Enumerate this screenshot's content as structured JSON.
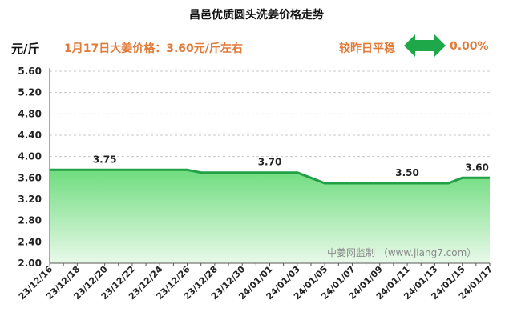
{
  "header": {
    "title": "昌邑优质圆头洗姜价格走势",
    "unit": "元/斤",
    "headline": "1月17日大姜价格：3.60元/斤左右",
    "change_label": "较昨日平稳",
    "change_value": "0.00%",
    "change_icon": "double-arrow-icon",
    "accent_color": "#e07b39",
    "icon_color": "#1fa84a"
  },
  "watermark": "中姜网监制 （www.jiang7.com）",
  "chart_data": {
    "type": "area",
    "x": [
      "23/12/16",
      "23/12/17",
      "23/12/18",
      "23/12/19",
      "23/12/20",
      "23/12/21",
      "23/12/22",
      "23/12/23",
      "23/12/24",
      "23/12/25",
      "23/12/26",
      "23/12/27",
      "23/12/28",
      "23/12/29",
      "23/12/30",
      "23/12/31",
      "24/01/01",
      "24/01/02",
      "24/01/03",
      "24/01/04",
      "24/01/05",
      "24/01/06",
      "24/01/07",
      "24/01/08",
      "24/01/09",
      "24/01/10",
      "24/01/11",
      "24/01/12",
      "24/01/13",
      "24/01/14",
      "24/01/15",
      "24/01/16",
      "24/01/17"
    ],
    "values": [
      3.75,
      3.75,
      3.75,
      3.75,
      3.75,
      3.75,
      3.75,
      3.75,
      3.75,
      3.75,
      3.75,
      3.7,
      3.7,
      3.7,
      3.7,
      3.7,
      3.7,
      3.7,
      3.7,
      3.6,
      3.5,
      3.5,
      3.5,
      3.5,
      3.5,
      3.5,
      3.5,
      3.5,
      3.5,
      3.5,
      3.6,
      3.6,
      3.6
    ],
    "tick_labels": [
      "23/12/16",
      "23/12/18",
      "23/12/20",
      "23/12/22",
      "23/12/24",
      "23/12/26",
      "23/12/28",
      "23/12/30",
      "24/01/01",
      "24/01/03",
      "24/01/05",
      "24/01/07",
      "24/01/09",
      "24/01/11",
      "24/01/13",
      "24/01/15",
      "24/01/17"
    ],
    "y_ticks": [
      "2.00",
      "2.40",
      "2.80",
      "3.20",
      "3.60",
      "4.00",
      "4.40",
      "4.80",
      "5.20",
      "5.60"
    ],
    "ylim": [
      2.0,
      5.6
    ],
    "data_labels": [
      {
        "x": "23/12/20",
        "text": "3.75"
      },
      {
        "x": "24/01/01",
        "text": "3.70"
      },
      {
        "x": "24/01/11",
        "text": "3.50"
      },
      {
        "x": "24/01/17",
        "text": "3.60"
      }
    ],
    "grid": true,
    "line_color": "#22a046",
    "fill_top": "#6fdc7e",
    "fill_bottom": "#e9f9ea"
  }
}
